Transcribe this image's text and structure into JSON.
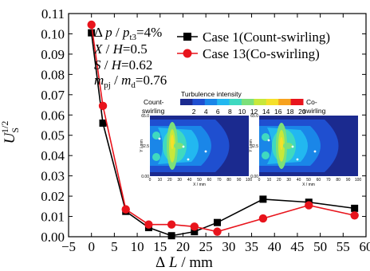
{
  "chart_data": {
    "type": "line",
    "xlabel": "Δ L / mm",
    "ylabel": "U_S^1/2",
    "xlim": [
      -5,
      60
    ],
    "ylim": [
      0,
      0.11
    ],
    "xticks": [
      "−5",
      "0",
      "5",
      "10",
      "15",
      "20",
      "25",
      "30",
      "35",
      "40",
      "45",
      "50",
      "55",
      "60"
    ],
    "yticks": [
      "0.00",
      "0.01",
      "0.02",
      "0.03",
      "0.04",
      "0.05",
      "0.06",
      "0.07",
      "0.08",
      "0.09",
      "0.10",
      "0.11"
    ],
    "series": [
      {
        "name": "Case 1(Count-swirling)",
        "color": "#000000",
        "marker": "square",
        "x": [
          0,
          2.5,
          7.5,
          12.5,
          17.5,
          22.5,
          27.5,
          37.5,
          47.5,
          57.5
        ],
        "y": [
          0.1005,
          0.056,
          0.0125,
          0.0045,
          0.0005,
          0.0025,
          0.007,
          0.0185,
          0.017,
          0.014
        ]
      },
      {
        "name": "Case 13(Co-swirling)",
        "color": "#e8141c",
        "marker": "circle",
        "x": [
          0,
          2.5,
          7.5,
          12.5,
          17.5,
          22.5,
          27.5,
          37.5,
          47.5,
          57.5
        ],
        "y": [
          0.1045,
          0.0645,
          0.0135,
          0.006,
          0.006,
          0.005,
          0.0025,
          0.009,
          0.0155,
          0.0105
        ]
      }
    ],
    "annotations": [
      {
        "pre": "Δ ",
        "a": "p",
        "b": " / ",
        "c": "p",
        "sub": "t3",
        "post": "=4%"
      },
      {
        "a": "X",
        "b": " / ",
        "c": "H",
        "post": "=0.5"
      },
      {
        "a": "S",
        "b": " / ",
        "c": "H",
        "post": "=0.62"
      },
      {
        "a": "m",
        "sub1": "pj",
        "b": " / ",
        "c": "m",
        "sub": "d",
        "post": "=0.76"
      }
    ],
    "inset": {
      "colorbar_title": "Turbulence intensity",
      "colorbar_ticks": [
        "2",
        "4",
        "6",
        "8",
        "10",
        "12",
        "14",
        "16",
        "18",
        "20"
      ],
      "left_label": [
        "Count-",
        "swirling"
      ],
      "right_label": [
        "Co-",
        "swirling"
      ],
      "y_axis_label": "Y / mm",
      "x_axis_label": "X / mm",
      "y_ticks": [
        "65.0",
        "32.5",
        "0.00"
      ],
      "x_ticks": [
        "0",
        "10",
        "20",
        "30",
        "40",
        "50",
        "60",
        "70",
        "80",
        "90",
        "100"
      ],
      "colorbar_colors": [
        "#1b2a8f",
        "#1f4fd0",
        "#1a86e8",
        "#22b8f0",
        "#3fd9c0",
        "#7ce07a",
        "#c8e83a",
        "#f5e02a",
        "#f7a21e",
        "#e8141c"
      ]
    }
  }
}
